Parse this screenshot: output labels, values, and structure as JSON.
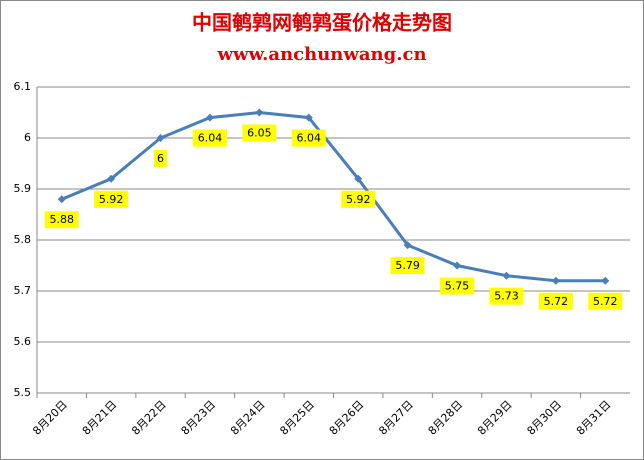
{
  "chart_data": {
    "type": "line",
    "title": "中国鹌鹑网鹌鹑蛋价格走势图",
    "subtitle": "www.anchunwang.cn",
    "categories": [
      "8月20日",
      "8月21日",
      "8月22日",
      "8月23日",
      "8月24日",
      "8月25日",
      "8月26日",
      "8月27日",
      "8月28日",
      "8月29日",
      "8月30日",
      "8月31日"
    ],
    "series": [
      {
        "color": "#4a7ebb",
        "values": [
          5.88,
          5.92,
          6,
          6.04,
          6.05,
          6.04,
          5.92,
          5.79,
          5.75,
          5.73,
          5.72,
          5.72
        ]
      }
    ],
    "ylim": [
      5.5,
      6.1
    ],
    "yticks": [
      5.5,
      5.6,
      5.7,
      5.8,
      5.9,
      6,
      6.1
    ],
    "grid": true
  }
}
